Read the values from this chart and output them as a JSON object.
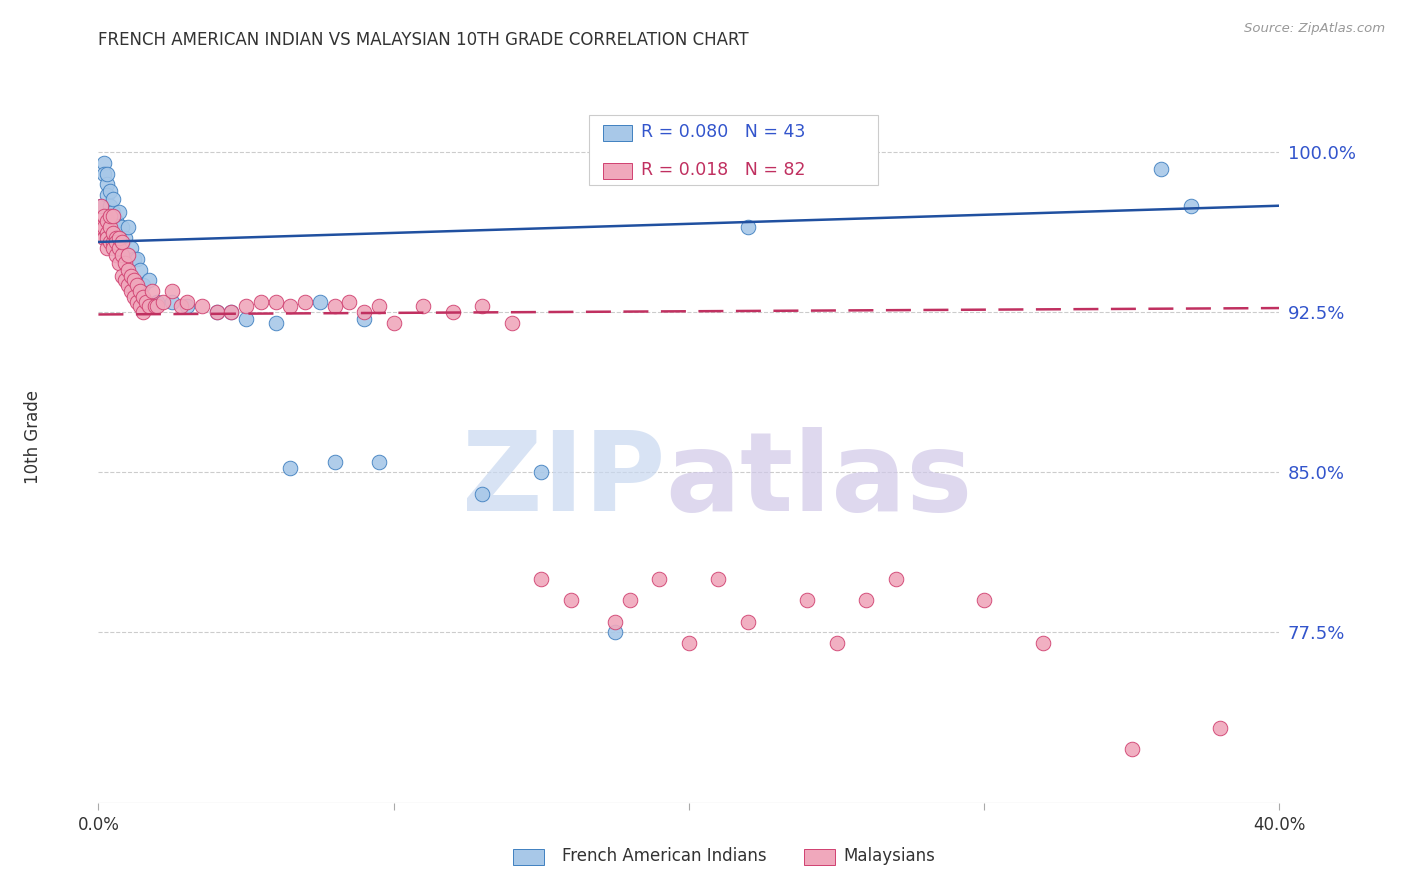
{
  "title": "FRENCH AMERICAN INDIAN VS MALAYSIAN 10TH GRADE CORRELATION CHART",
  "source": "Source: ZipAtlas.com",
  "ylabel": "10th Grade",
  "yticks": [
    0.775,
    0.85,
    0.925,
    1.0
  ],
  "ytick_labels": [
    "77.5%",
    "85.0%",
    "92.5%",
    "100.0%"
  ],
  "xlim": [
    0.0,
    0.4
  ],
  "ylim": [
    0.695,
    1.038
  ],
  "blue_label": "French American Indians",
  "pink_label": "Malaysians",
  "blue_R": "0.080",
  "blue_N": "43",
  "pink_R": "0.018",
  "pink_N": "82",
  "blue_color": "#a8c8e8",
  "pink_color": "#f0a8bc",
  "blue_edge_color": "#4080c0",
  "pink_edge_color": "#d04070",
  "blue_line_color": "#2050a0",
  "pink_line_color": "#c03060",
  "background_color": "#ffffff",
  "watermark_zip_color": "#c8d8f0",
  "watermark_atlas_color": "#d0c8e8",
  "blue_points_x": [
    0.001,
    0.002,
    0.002,
    0.003,
    0.003,
    0.003,
    0.004,
    0.004,
    0.005,
    0.005,
    0.006,
    0.006,
    0.007,
    0.007,
    0.008,
    0.008,
    0.009,
    0.01,
    0.01,
    0.011,
    0.012,
    0.013,
    0.014,
    0.015,
    0.017,
    0.02,
    0.025,
    0.03,
    0.04,
    0.045,
    0.05,
    0.06,
    0.065,
    0.075,
    0.08,
    0.09,
    0.095,
    0.13,
    0.15,
    0.175,
    0.22,
    0.36,
    0.37
  ],
  "blue_points_y": [
    0.975,
    0.995,
    0.99,
    0.985,
    0.99,
    0.98,
    0.975,
    0.982,
    0.972,
    0.978,
    0.968,
    0.96,
    0.972,
    0.96,
    0.965,
    0.955,
    0.96,
    0.952,
    0.965,
    0.955,
    0.95,
    0.95,
    0.945,
    0.938,
    0.94,
    0.93,
    0.93,
    0.928,
    0.925,
    0.925,
    0.922,
    0.92,
    0.852,
    0.93,
    0.855,
    0.922,
    0.855,
    0.84,
    0.85,
    0.775,
    0.965,
    0.992,
    0.975
  ],
  "pink_points_x": [
    0.001,
    0.001,
    0.002,
    0.002,
    0.002,
    0.003,
    0.003,
    0.003,
    0.003,
    0.004,
    0.004,
    0.004,
    0.005,
    0.005,
    0.005,
    0.005,
    0.006,
    0.006,
    0.006,
    0.007,
    0.007,
    0.007,
    0.008,
    0.008,
    0.008,
    0.009,
    0.009,
    0.01,
    0.01,
    0.01,
    0.011,
    0.011,
    0.012,
    0.012,
    0.013,
    0.013,
    0.014,
    0.014,
    0.015,
    0.015,
    0.016,
    0.017,
    0.018,
    0.019,
    0.02,
    0.022,
    0.025,
    0.028,
    0.03,
    0.035,
    0.04,
    0.045,
    0.05,
    0.055,
    0.06,
    0.065,
    0.07,
    0.08,
    0.085,
    0.09,
    0.095,
    0.1,
    0.11,
    0.12,
    0.13,
    0.14,
    0.15,
    0.16,
    0.175,
    0.18,
    0.19,
    0.2,
    0.21,
    0.22,
    0.24,
    0.25,
    0.26,
    0.27,
    0.3,
    0.32,
    0.35,
    0.38
  ],
  "pink_points_y": [
    0.965,
    0.975,
    0.97,
    0.96,
    0.965,
    0.962,
    0.968,
    0.955,
    0.96,
    0.958,
    0.965,
    0.97,
    0.958,
    0.955,
    0.962,
    0.97,
    0.96,
    0.952,
    0.958,
    0.955,
    0.96,
    0.948,
    0.952,
    0.942,
    0.958,
    0.948,
    0.94,
    0.945,
    0.938,
    0.952,
    0.942,
    0.935,
    0.94,
    0.932,
    0.938,
    0.93,
    0.935,
    0.928,
    0.932,
    0.925,
    0.93,
    0.928,
    0.935,
    0.928,
    0.928,
    0.93,
    0.935,
    0.928,
    0.93,
    0.928,
    0.925,
    0.925,
    0.928,
    0.93,
    0.93,
    0.928,
    0.93,
    0.928,
    0.93,
    0.925,
    0.928,
    0.92,
    0.928,
    0.925,
    0.928,
    0.92,
    0.8,
    0.79,
    0.78,
    0.79,
    0.8,
    0.77,
    0.8,
    0.78,
    0.79,
    0.77,
    0.79,
    0.8,
    0.79,
    0.77,
    0.72,
    0.73
  ]
}
